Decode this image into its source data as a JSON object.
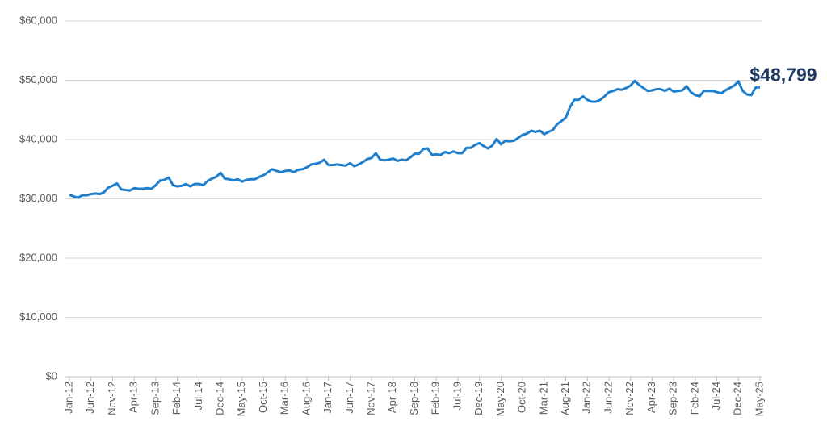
{
  "chart_data": {
    "type": "line",
    "categories": [
      "Jan-12",
      null,
      null,
      null,
      null,
      "Jun-12",
      null,
      null,
      null,
      null,
      "Nov-12",
      null,
      null,
      null,
      null,
      "Apr-13",
      null,
      null,
      null,
      null,
      "Sep-13",
      null,
      null,
      null,
      null,
      "Feb-14",
      null,
      null,
      null,
      null,
      "Jul-14",
      null,
      null,
      null,
      null,
      "Dec-14",
      null,
      null,
      null,
      null,
      "May-15",
      null,
      null,
      null,
      null,
      "Oct-15",
      null,
      null,
      null,
      null,
      "Mar-16",
      null,
      null,
      null,
      null,
      "Aug-16",
      null,
      null,
      null,
      null,
      "Jan-17",
      null,
      null,
      null,
      null,
      "Jun-17",
      null,
      null,
      null,
      null,
      "Nov-17",
      null,
      null,
      null,
      null,
      "Apr-18",
      null,
      null,
      null,
      null,
      "Sep-18",
      null,
      null,
      null,
      null,
      "Feb-19",
      null,
      null,
      null,
      null,
      "Jul-19",
      null,
      null,
      null,
      null,
      "Dec-19",
      null,
      null,
      null,
      null,
      "May-20",
      null,
      null,
      null,
      null,
      "Oct-20",
      null,
      null,
      null,
      null,
      "Mar-21",
      null,
      null,
      null,
      null,
      "Aug-21",
      null,
      null,
      null,
      null,
      "Jan-22",
      null,
      null,
      null,
      null,
      "Jun-22",
      null,
      null,
      null,
      null,
      "Nov-22",
      null,
      null,
      null,
      null,
      "Apr-23",
      null,
      null,
      null,
      null,
      "Sep-23",
      null,
      null,
      null,
      null,
      "Feb-24",
      null,
      null,
      null,
      null,
      "Jul-24",
      null,
      null,
      null,
      null,
      "Dec-24",
      null,
      null,
      null,
      null,
      "May-25"
    ],
    "values": [
      30700,
      30400,
      30200,
      30600,
      30600,
      30800,
      30900,
      30800,
      31100,
      31900,
      32200,
      32600,
      31600,
      31500,
      31400,
      31800,
      31700,
      31700,
      31800,
      31700,
      32300,
      33100,
      33200,
      33600,
      32300,
      32100,
      32200,
      32500,
      32100,
      32500,
      32500,
      32300,
      33000,
      33400,
      33700,
      34400,
      33400,
      33300,
      33100,
      33300,
      32900,
      33200,
      33300,
      33300,
      33700,
      34000,
      34500,
      35000,
      34700,
      34500,
      34700,
      34800,
      34500,
      34900,
      35000,
      35300,
      35800,
      35900,
      36100,
      36600,
      35700,
      35700,
      35800,
      35700,
      35600,
      36000,
      35500,
      35800,
      36200,
      36700,
      36900,
      37700,
      36600,
      36500,
      36600,
      36800,
      36400,
      36600,
      36500,
      37000,
      37600,
      37600,
      38400,
      38500,
      37400,
      37500,
      37400,
      37900,
      37700,
      38000,
      37700,
      37700,
      38600,
      38600,
      39100,
      39400,
      38900,
      38500,
      39000,
      40100,
      39200,
      39800,
      39700,
      39800,
      40300,
      40800,
      41000,
      41500,
      41300,
      41500,
      40900,
      41300,
      41600,
      42600,
      43100,
      43700,
      45500,
      46700,
      46700,
      47300,
      46700,
      46400,
      46400,
      46700,
      47300,
      48000,
      48200,
      48500,
      48400,
      48700,
      49100,
      49900,
      49200,
      48700,
      48200,
      48300,
      48500,
      48500,
      48200,
      48600,
      48100,
      48200,
      48300,
      49000,
      48000,
      47500,
      47300,
      48200,
      48200,
      48200,
      48000,
      47800,
      48300,
      48700,
      49100,
      49800,
      48200,
      47600,
      47500,
      48799,
      48799
    ],
    "value_labels": [
      null,
      null,
      null,
      null,
      null,
      null,
      null,
      null,
      null,
      null,
      null,
      null,
      null,
      null,
      null,
      null,
      null,
      null,
      null,
      null,
      null,
      null,
      null,
      null,
      null,
      null,
      null,
      null,
      null,
      null,
      null,
      null,
      null,
      null,
      null,
      null,
      null,
      null,
      null,
      null,
      null,
      null,
      null,
      null,
      null,
      null,
      null,
      null,
      null,
      null,
      null,
      null,
      null,
      null,
      null,
      null,
      null,
      null,
      null,
      null,
      null,
      null,
      null,
      null,
      null,
      null,
      null,
      null,
      null,
      null,
      null,
      null,
      null,
      null,
      null,
      null,
      null,
      null,
      null,
      null,
      null,
      null,
      null,
      null,
      null,
      null,
      null,
      null,
      null,
      null,
      null,
      null,
      null,
      null,
      null,
      null,
      null,
      null,
      null,
      null,
      null,
      null,
      null,
      null,
      null,
      null,
      null,
      null,
      null,
      null,
      null,
      null,
      null,
      null,
      null,
      null,
      null,
      null,
      null,
      null,
      null,
      null,
      null,
      null,
      null,
      null,
      null,
      null,
      null,
      null,
      null,
      null,
      null,
      null,
      null,
      null,
      null,
      null,
      null,
      null,
      null,
      null,
      null,
      null,
      null,
      null,
      null,
      null,
      null,
      null,
      null,
      null,
      null,
      null,
      null,
      null,
      null,
      null,
      null,
      null,
      "$48,799"
    ],
    "color": "#1f7fcc",
    "label_color": "#1f3864",
    "ylim": [
      0,
      60000
    ],
    "yticks": [
      {
        "value": 0,
        "label": "$0"
      },
      {
        "value": 10000,
        "label": "$10,000"
      },
      {
        "value": 20000,
        "label": "$20,000"
      },
      {
        "value": 30000,
        "label": "$30,000"
      },
      {
        "value": 40000,
        "label": "$40,000"
      },
      {
        "value": 50000,
        "label": "$50,000"
      },
      {
        "value": 60000,
        "label": "$60,000"
      }
    ],
    "grid": true
  }
}
